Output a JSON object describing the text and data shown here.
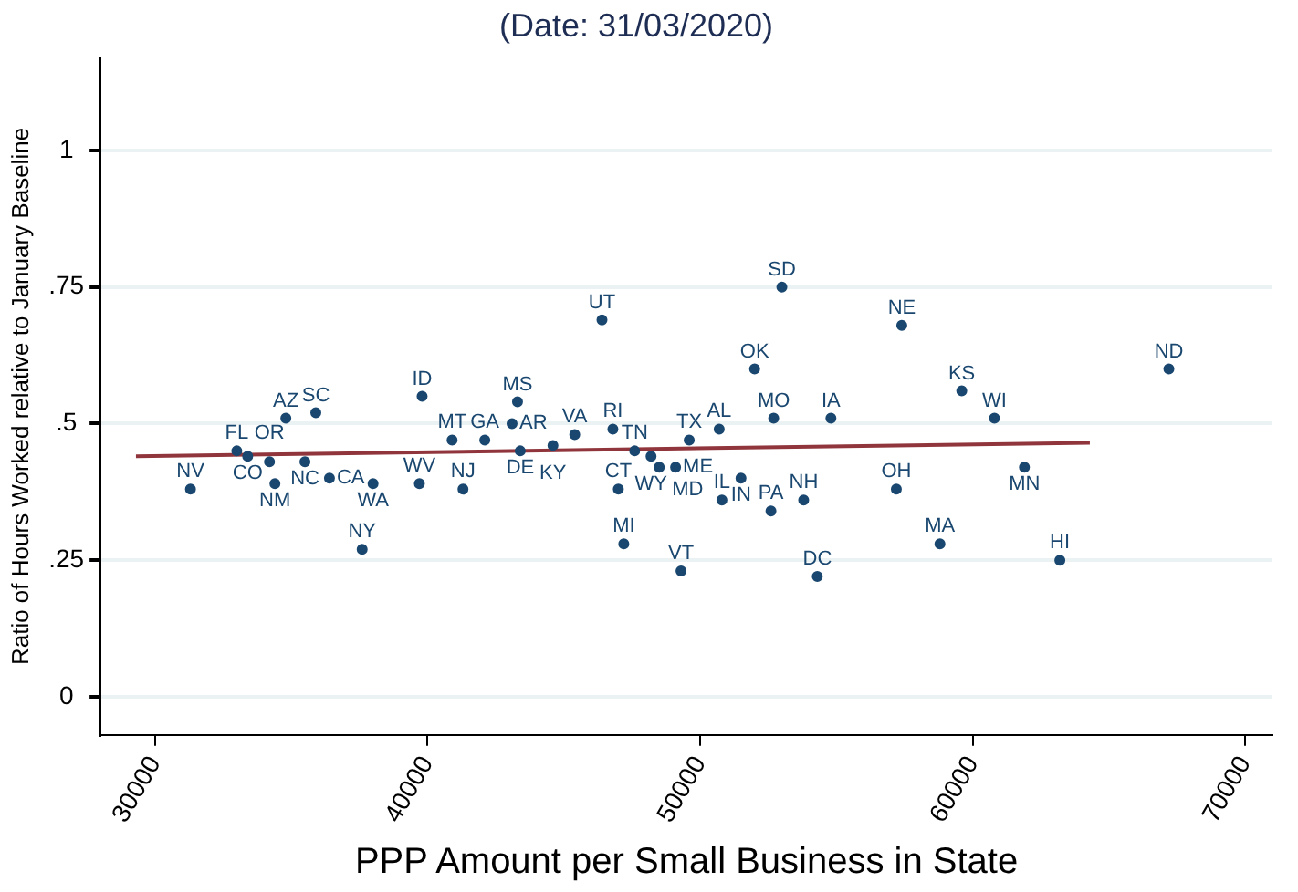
{
  "chart_data": {
    "type": "scatter",
    "title": "(Date: 31/03/2020)",
    "xlabel": "PPP Amount per Small Business in State",
    "ylabel": "Ratio of Hours Worked relative to January Baseline",
    "xlim": [
      28000,
      71000
    ],
    "xticks": [
      30000,
      40000,
      50000,
      60000,
      70000
    ],
    "ylim": [
      -0.07,
      1.17
    ],
    "yticks": [
      0,
      {
        "value": 0.25,
        "label": ".25"
      },
      {
        "value": 0.5,
        "label": ".5"
      },
      {
        "value": 0.75,
        "label": ".75"
      },
      1
    ],
    "grid": "y",
    "legend": false,
    "series": [
      {
        "color": "#1a476f",
        "marker": "circle",
        "x": [
          31300,
          33000,
          33400,
          34200,
          34400,
          35500,
          36400,
          34800,
          35900,
          38000,
          39700,
          41300,
          37600,
          39800,
          40900,
          42100,
          43300,
          43100,
          43400,
          44600,
          45400,
          46800,
          47600,
          48200,
          48500,
          49100,
          47000,
          47200,
          46400,
          49600,
          50700,
          52000,
          52700,
          54800,
          53000,
          51500,
          50800,
          52600,
          53800,
          54300,
          49300,
          57200,
          57400,
          59600,
          60800,
          61900,
          58800,
          63200,
          67200
        ],
        "values": [
          0.38,
          0.45,
          0.44,
          0.43,
          0.39,
          0.43,
          0.4,
          0.51,
          0.52,
          0.39,
          0.39,
          0.38,
          0.27,
          0.55,
          0.47,
          0.47,
          0.54,
          0.5,
          0.45,
          0.46,
          0.48,
          0.49,
          0.45,
          0.44,
          0.42,
          0.42,
          0.38,
          0.28,
          0.69,
          0.47,
          0.49,
          0.6,
          0.51,
          0.51,
          0.75,
          0.4,
          0.36,
          0.34,
          0.36,
          0.22,
          0.23,
          0.38,
          0.68,
          0.56,
          0.51,
          0.42,
          0.28,
          0.25,
          0.6
        ],
        "value_labels": [
          "NV",
          "FL",
          "CO",
          "OR",
          "NM",
          "NC",
          "CA",
          "AZ",
          "SC",
          "WA",
          "WV",
          "NJ",
          "NY",
          "ID",
          "MT",
          "GA",
          "MS",
          "AR",
          "DE",
          "KY",
          "VA",
          "RI",
          "TN",
          "WY",
          "MD",
          "ME",
          "CT",
          "MI",
          "UT",
          "TX",
          "AL",
          "OK",
          "MO",
          "IA",
          "SD",
          "IN",
          "IL",
          "PA",
          "NH",
          "DC",
          "VT",
          "OH",
          "NE",
          "KS",
          "WI",
          "MN",
          "MA",
          "HI",
          "ND"
        ]
      },
      {
        "type": "line",
        "marker": "none",
        "color": "#90353b",
        "x": [
          29300,
          64300
        ],
        "values": [
          0.44,
          0.465
        ]
      }
    ]
  }
}
